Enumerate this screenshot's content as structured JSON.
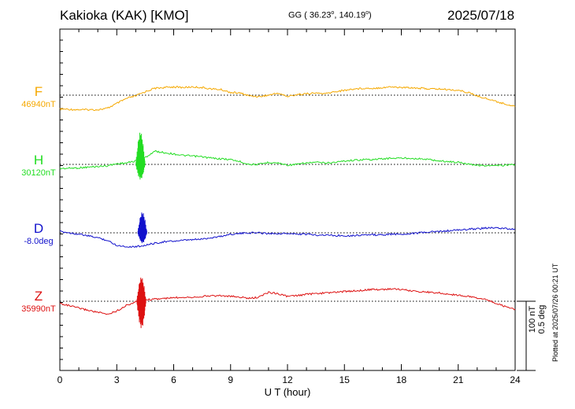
{
  "header": {
    "title_left": "Kakioka (KAK)  [KMO]",
    "title_mid_prefix": "GG ( 36.23",
    "title_mid_mid": ", 140.19",
    "title_mid_suffix": ")",
    "title_mid_degree": "o",
    "date": "2025/07/18"
  },
  "plotted_note": "Plotted at 2025/07/26 00:21 UT",
  "scale_bar": {
    "line1": "100 nT",
    "line2": "0.5 deg"
  },
  "chart_data": {
    "type": "line",
    "title": "Kakioka (KAK)  [KMO]",
    "xlabel": "U T (hour)",
    "ylabel": "",
    "xlim": [
      0,
      24
    ],
    "x_ticks": [
      "0",
      "3",
      "6",
      "9",
      "12",
      "15",
      "18",
      "21",
      "24"
    ],
    "legend": "none",
    "grid": "dotted baselines",
    "scale": {
      "nT_per_bar": 100,
      "deg_per_bar": 0.5
    },
    "series": [
      {
        "name": "F",
        "baseline_label": "46940nT",
        "color": "#f5a800",
        "x": [
          0,
          1,
          2,
          2.5,
          3,
          3.5,
          4,
          4.5,
          5,
          5.5,
          6,
          6.5,
          7,
          7.5,
          8,
          8.5,
          9,
          9.5,
          10,
          10.5,
          11,
          11.5,
          12,
          12.5,
          13,
          13.5,
          14,
          14.5,
          15,
          15.5,
          16,
          16.5,
          17,
          17.5,
          18,
          18.5,
          19,
          19.5,
          20,
          20.5,
          21,
          21.5,
          22,
          22.5,
          23,
          23.5,
          24
        ],
        "values": [
          -20,
          -21,
          -21,
          -19,
          -12,
          -5,
          -1,
          5,
          10,
          11,
          12,
          11,
          12,
          11,
          9,
          8,
          4,
          3,
          -1,
          -2,
          0,
          3,
          -2,
          1,
          2,
          3,
          2,
          5,
          7,
          9,
          10,
          10,
          11,
          12,
          11,
          11,
          10,
          9,
          9,
          8,
          7,
          4,
          -1,
          -5,
          -9,
          -13,
          -16
        ]
      },
      {
        "name": "H",
        "baseline_label": "30120nT",
        "color": "#22dd22",
        "x": [
          0,
          1,
          2,
          2.5,
          3,
          3.5,
          4,
          4.5,
          5,
          5.5,
          6,
          6.5,
          7,
          7.5,
          8,
          8.5,
          9,
          9.5,
          10,
          10.5,
          11,
          11.5,
          12,
          12.5,
          13,
          13.5,
          14,
          14.5,
          15,
          15.5,
          16,
          16.5,
          17,
          17.5,
          18,
          18.5,
          19,
          19.5,
          20,
          20.5,
          21,
          21.5,
          22,
          22.5,
          23,
          23.5,
          24
        ],
        "values": [
          -6,
          -5,
          -3,
          -2,
          1,
          2,
          5,
          10,
          19,
          17,
          15,
          13,
          12,
          11,
          9,
          8,
          7,
          4,
          0,
          0,
          3,
          2,
          -1,
          0,
          2,
          3,
          2,
          3,
          5,
          6,
          7,
          7,
          8,
          9,
          9,
          9,
          8,
          7,
          5,
          4,
          3,
          1,
          -1,
          -2,
          -2,
          -1,
          0
        ]
      },
      {
        "name": "D",
        "baseline_label": "-8.0deg",
        "color": "#1111cc",
        "x": [
          0,
          1,
          2,
          2.5,
          3,
          3.5,
          4,
          4.5,
          5,
          5.5,
          6,
          6.5,
          7,
          7.5,
          8,
          8.5,
          9,
          9.5,
          10,
          10.5,
          11,
          11.5,
          12,
          12.5,
          13,
          13.5,
          14,
          14.5,
          15,
          15.5,
          16,
          16.5,
          17,
          17.5,
          18,
          18.5,
          19,
          19.5,
          20,
          20.5,
          21,
          21.5,
          22,
          22.5,
          23,
          23.5,
          24
        ],
        "values": [
          2,
          -2,
          -7,
          -11,
          -18,
          -20,
          -20,
          -18,
          -15,
          -13,
          -12,
          -11,
          -10,
          -9,
          -7,
          -5,
          -2,
          -1,
          0,
          0,
          -1,
          -1,
          -1,
          -2,
          -2,
          -3,
          -3,
          -4,
          -4,
          -4,
          -3,
          -3,
          -3,
          -2,
          -2,
          -1,
          0,
          1,
          2,
          3,
          4,
          5,
          6,
          7,
          7,
          6,
          5
        ]
      },
      {
        "name": "Z",
        "baseline_label": "35990nT",
        "color": "#dd1111",
        "x": [
          0,
          1,
          2,
          2.5,
          3,
          3.5,
          4,
          4.5,
          5,
          5.5,
          6,
          6.5,
          7,
          7.5,
          8,
          8.5,
          9,
          9.5,
          10,
          10.5,
          11,
          11.5,
          12,
          12.5,
          13,
          13.5,
          14,
          14.5,
          15,
          15.5,
          16,
          16.5,
          17,
          17.5,
          18,
          18.5,
          19,
          19.5,
          20,
          20.5,
          21,
          21.5,
          22,
          22.5,
          23,
          23.5,
          24
        ],
        "values": [
          -3,
          -10,
          -16,
          -19,
          -14,
          -6,
          -1,
          2,
          3,
          4,
          5,
          6,
          6,
          7,
          8,
          8,
          7,
          6,
          4,
          6,
          13,
          11,
          7,
          8,
          10,
          11,
          12,
          13,
          14,
          15,
          16,
          17,
          17,
          18,
          17,
          15,
          14,
          13,
          12,
          10,
          9,
          7,
          5,
          2,
          -3,
          -8,
          -12
        ]
      }
    ],
    "bursts": [
      {
        "series": "H",
        "x": 4.25,
        "up": 47,
        "down": -22
      },
      {
        "series": "D",
        "x": 4.35,
        "up": 30,
        "down": -15
      },
      {
        "series": "Z",
        "x": 4.3,
        "up": 35,
        "down": -39
      }
    ]
  }
}
